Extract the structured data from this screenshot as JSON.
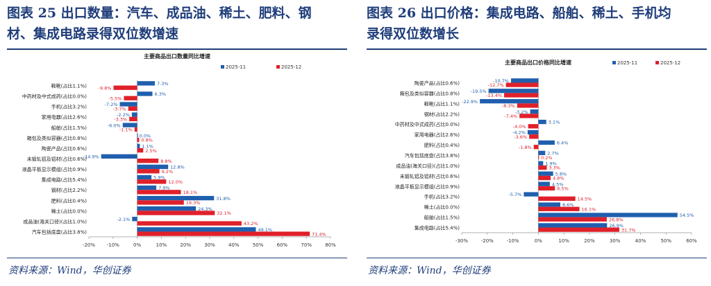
{
  "left": {
    "title_line1": "图表 25   出口数量：汽车、成品油、稀土、肥料、钢",
    "title_line2": "材、集成电路录得双位数增速",
    "source": "资料来源：Wind，华创证券"
  },
  "right": {
    "title_line1": "图表 26   出口价格：集成电路、船舶、稀土、手机均",
    "title_line2": "录得双位数增长",
    "source": "资料来源：Wind，华创证券"
  },
  "colors": {
    "s1": "#1f5fae",
    "s2": "#e0202a",
    "title": "#1f3d7a"
  },
  "chart_data": [
    {
      "type": "bar",
      "orientation": "horizontal",
      "title": "主要商品出口数量同比增速",
      "categories": [
        "鞋靴(占比1.1%)",
        "中药材及中式成药(占比0.0%)",
        "手机(占比3.2%)",
        "家用电器(占比2.6%)",
        "船舶(占比1.5%)",
        "箱包及类似容器(占比0.8%)",
        "陶瓷产品(占比0.6%)",
        "未锻轧铝及铝材(占比0.6%)",
        "液晶平板显示模组(占比0.9%)",
        "集成电路(占比5.4%)",
        "钢材(占比2.2%)",
        "肥料(占比0.4%)",
        "稀土(占比0.0%)",
        "成品油(海关口径)(占比1.0%)",
        "汽车包括底盘(占比3.8%)"
      ],
      "series": [
        {
          "name": "2025-11",
          "values": [
            7.3,
            6.3,
            -7.2,
            -2.2,
            -6.0,
            -0.0,
            1.1,
            -14.9,
            12.8,
            5.9,
            7.9,
            31.8,
            24.3,
            -2.1,
            49.1
          ]
        },
        {
          "name": "2025-12",
          "values": [
            -9.8,
            -5.5,
            -3.7,
            -3.3,
            -1.1,
            0.8,
            2.5,
            8.8,
            9.2,
            12.0,
            18.1,
            19.3,
            32.1,
            43.2,
            71.4
          ]
        }
      ],
      "xlim": [
        -20,
        80
      ],
      "xticks": [
        "-20%",
        "-10%",
        "0%",
        "10%",
        "20%",
        "30%",
        "40%",
        "50%",
        "60%",
        "70%",
        "80%"
      ],
      "legend": "top-right"
    },
    {
      "type": "bar",
      "orientation": "horizontal",
      "title": "主要商品出口价格同比增速",
      "categories": [
        "陶瓷产品(占比0.6%)",
        "箱包及类似容器(占比0.8%)",
        "鞋靴(占比1.1%)",
        "钢材(占比2.2%)",
        "中药材及中式成药(占比0.0%)",
        "家用电器(占比2.6%)",
        "肥料(占比0.4%)",
        "汽车包括底盘(占比3.8%)",
        "成品油(海关口径)(占比1.0%)",
        "未锻轧铝及铝材(占比0.6%)",
        "液晶平板显示模组(占比0.9%)",
        "手机(占比3.2%)",
        "稀土(占比0.0%)",
        "船舶(占比1.5%)",
        "集成电路(占比5.4%)"
      ],
      "series": [
        {
          "name": "2025-11",
          "values": [
            -10.7,
            -19.5,
            -22.9,
            -3.2,
            3.1,
            -4.2,
            6.4,
            2.7,
            1.9,
            5.8,
            4.5,
            -5.7,
            8.6,
            54.5,
            26.9
          ]
        },
        {
          "name": "2025-12",
          "values": [
            -12.7,
            -13.4,
            -8.3,
            -7.4,
            -4.0,
            -3.6,
            -1.8,
            0.2,
            3.3,
            4.8,
            6.5,
            14.5,
            16.1,
            26.8,
            31.7
          ]
        }
      ],
      "xlim": [
        -30,
        60
      ],
      "xticks": [
        "-30%",
        "-20%",
        "-10%",
        "0%",
        "10%",
        "20%",
        "30%",
        "40%",
        "50%",
        "60%"
      ],
      "legend": "top-right"
    }
  ]
}
